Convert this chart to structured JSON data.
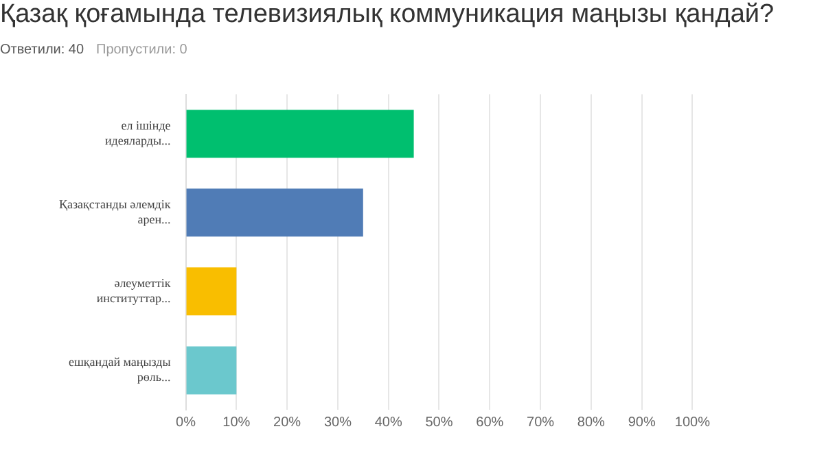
{
  "chart_data": {
    "type": "bar",
    "orientation": "horizontal",
    "title": "Қазақ қоғамында телевизиялық коммуникация маңызы қандай?",
    "subtitle": "Ответили: 40",
    "annotations": [
      "Пропустили: 0"
    ],
    "categories": [
      "ел ішінде идеяларды...",
      "Қазақстанды әлемдік арен...",
      "әлеуметтік институттар...",
      "ешқандай маңызды рөль..."
    ],
    "values": [
      45,
      35,
      10,
      10
    ],
    "colors": [
      "#00bf6f",
      "#507cb6",
      "#f9be00",
      "#6bc8cd"
    ],
    "xlim": [
      0,
      100
    ],
    "xticks": [
      {
        "value": 0,
        "label": "0%"
      },
      {
        "value": 10,
        "label": "10%"
      },
      {
        "value": 20,
        "label": "20%"
      },
      {
        "value": 30,
        "label": "30%"
      },
      {
        "value": 40,
        "label": "40%"
      },
      {
        "value": 50,
        "label": "50%"
      },
      {
        "value": 60,
        "label": "60%"
      },
      {
        "value": 70,
        "label": "70%"
      },
      {
        "value": 80,
        "label": "80%"
      },
      {
        "value": 90,
        "label": "90%"
      },
      {
        "value": 100,
        "label": "100%"
      }
    ],
    "grid": "x",
    "legend": false
  }
}
